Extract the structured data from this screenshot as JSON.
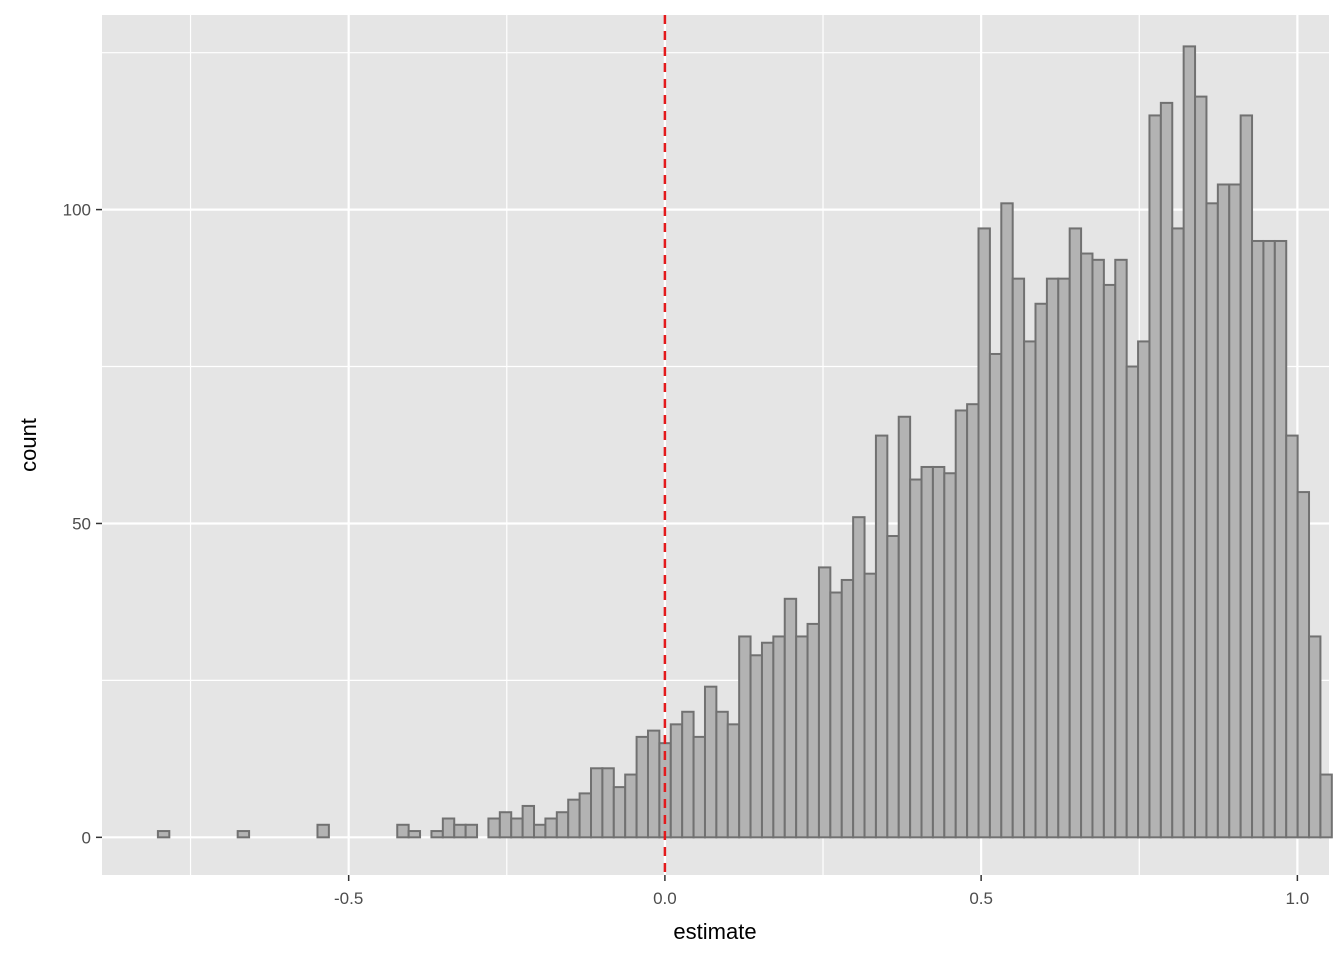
{
  "chart_data": {
    "type": "histogram",
    "title": "",
    "xlabel": "estimate",
    "ylabel": "count",
    "xlim": [
      -0.89,
      1.05
    ],
    "ylim": [
      -6,
      131
    ],
    "x_ticks": [
      -0.5,
      0.0,
      0.5,
      1.0
    ],
    "x_tick_labels": [
      "-0.5",
      "0.0",
      "0.5",
      "1.0"
    ],
    "y_ticks": [
      0,
      50,
      100
    ],
    "y_tick_labels": [
      "0",
      "50",
      "100"
    ],
    "grid": true,
    "bins": {
      "start": -0.8016,
      "width": 0.01802,
      "counts": [
        1,
        0,
        0,
        0,
        0,
        0,
        0,
        1,
        0,
        0,
        0,
        0,
        0,
        0,
        2,
        0,
        0,
        0,
        0,
        0,
        0,
        2,
        1,
        0,
        1,
        3,
        2,
        2,
        0,
        3,
        4,
        3,
        5,
        2,
        3,
        4,
        6,
        7,
        11,
        11,
        8,
        10,
        16,
        17,
        15,
        18,
        20,
        16,
        24,
        20,
        18,
        32,
        29,
        31,
        32,
        38,
        32,
        34,
        43,
        39,
        41,
        51,
        42,
        64,
        48,
        67,
        57,
        59,
        59,
        58,
        68,
        69,
        97,
        77,
        101,
        89,
        79,
        85,
        89,
        89,
        97,
        93,
        92,
        88,
        92,
        75,
        79,
        115,
        117,
        97,
        126,
        118,
        101,
        104,
        104,
        115,
        95,
        95,
        95,
        64,
        55,
        32,
        10
      ]
    },
    "reference_line": {
      "x": 0.0,
      "color": "#e41a1c",
      "style": "dashed"
    },
    "bar_fill": "#b3b3b3",
    "bar_stroke": "#717171",
    "panel_background": "#e5e5e5",
    "grid_color": "#ffffff"
  }
}
